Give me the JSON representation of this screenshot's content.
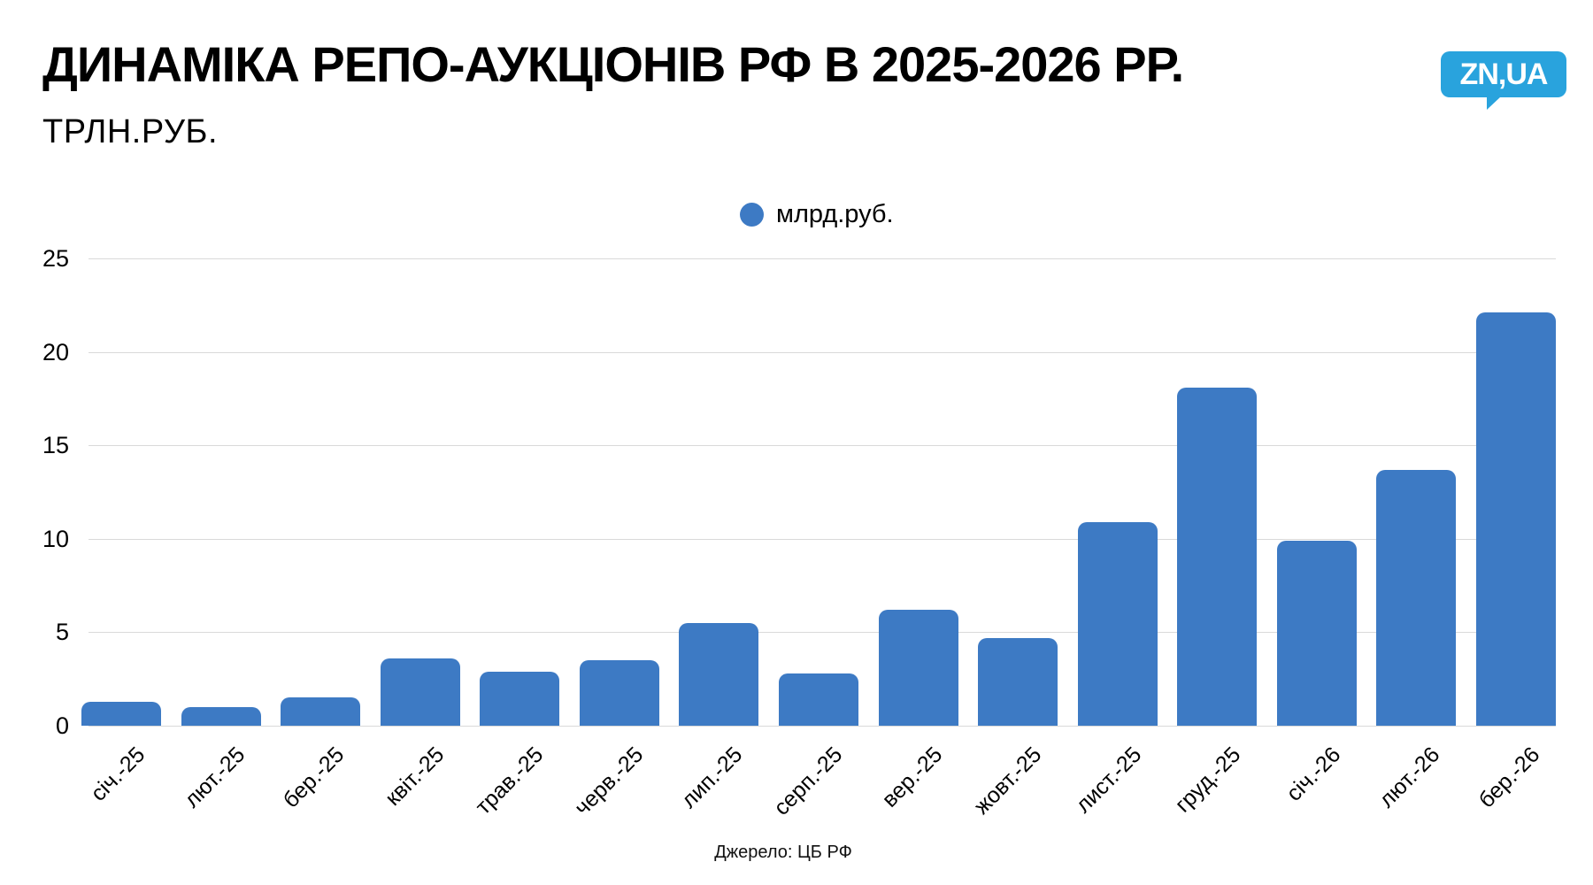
{
  "header": {
    "title": "ДИНАМІКА РЕПО-АУКЦІОНІВ РФ В 2025-2026 РР.",
    "subtitle": "ТРЛН.РУБ.",
    "logo_text": "ZN,UA"
  },
  "legend": {
    "label": "млрд.руб."
  },
  "source": {
    "label": "Джерело: ЦБ РФ"
  },
  "colors": {
    "bar": "#3d7ac4",
    "logo_blue": "#29a3dd",
    "gridline": "#d9d9d9",
    "text": "#000000"
  },
  "chart_data": {
    "type": "bar",
    "title": "ДИНАМІКА РЕПО-АУКЦІОНІВ РФ В 2025-2026 РР.",
    "subtitle": "ТРЛН.РУБ.",
    "series_label": "млрд.руб.",
    "categories": [
      "січ.-25",
      "лют.-25",
      "бер.-25",
      "квіт.-25",
      "трав.-25",
      "черв.-25",
      "лип.-25",
      "серп.-25",
      "вер.-25",
      "жовт.-25",
      "лист.-25",
      "груд.-25",
      "січ.-26",
      "лют.-26",
      "бер.-26"
    ],
    "values": [
      1.3,
      1.0,
      1.5,
      3.6,
      2.9,
      3.5,
      5.5,
      2.8,
      6.2,
      4.7,
      10.9,
      18.1,
      9.9,
      13.7,
      22.1
    ],
    "xlabel": "",
    "ylabel": "ТРЛН.РУБ.",
    "ylim": [
      0,
      25
    ],
    "yticks": [
      0,
      5,
      10,
      15,
      20,
      25
    ],
    "grid": true,
    "legend_position": "top-center",
    "source": "Джерело: ЦБ РФ"
  }
}
